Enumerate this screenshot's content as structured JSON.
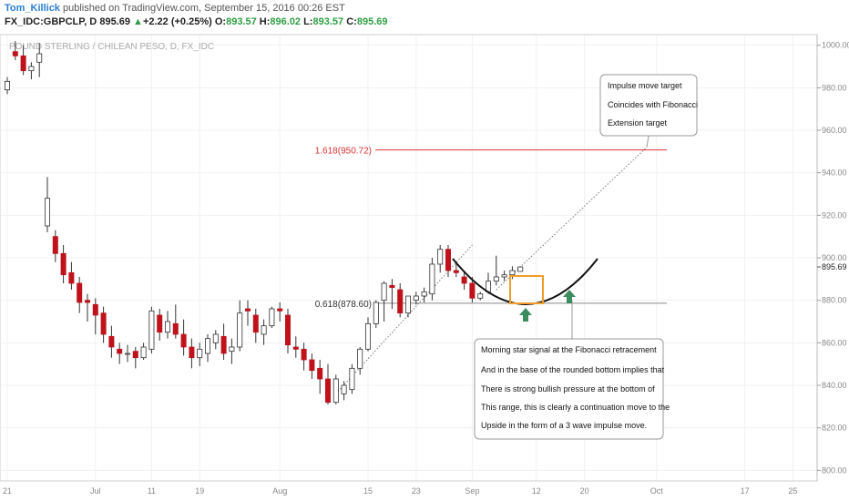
{
  "header": {
    "author": "Tom_Killick",
    "published": " published on TradingView.com, September 15, 2016 00:26 EST",
    "symbol": "FX_IDC:GBPCLP, D",
    "last": "895.69",
    "arrow": "▲",
    "change": "+2.22 (+0.25%)",
    "o_label": "O:",
    "o": "893.57",
    "h_label": "H:",
    "h": "896.02",
    "l_label": "L:",
    "l": "893.57",
    "c_label": "C:",
    "c": "895.69"
  },
  "chart_data": {
    "type": "candlestick",
    "title": "POUND STERLING / CHILEAN PESO, D, FX_IDC",
    "ylim": [
      795,
      1005
    ],
    "y_ticks": [
      800,
      820,
      840,
      860,
      880,
      900,
      920,
      940,
      960,
      980,
      1000
    ],
    "y_tick_labels": [
      "800.00",
      "820.00",
      "840.00",
      "860.00",
      "880.00",
      "900.00",
      "920.00",
      "940.00",
      "960.00",
      "980.00",
      "1000.00"
    ],
    "x_ticks": [
      {
        "label": "21",
        "bar": 0
      },
      {
        "label": "Jul",
        "bar": 11
      },
      {
        "label": "11",
        "bar": 18
      },
      {
        "label": "19",
        "bar": 24
      },
      {
        "label": "Aug",
        "bar": 34
      },
      {
        "label": "15",
        "bar": 45
      },
      {
        "label": "23",
        "bar": 51
      },
      {
        "label": "Sep",
        "bar": 58
      },
      {
        "label": "12",
        "bar": 66
      },
      {
        "label": "20",
        "bar": 72
      },
      {
        "label": "Oct",
        "bar": 81
      },
      {
        "label": "17",
        "bar": 92
      },
      {
        "label": "25",
        "bar": 98
      }
    ],
    "grid": true,
    "candles": [
      [
        979,
        985,
        977,
        983
      ],
      [
        997,
        1002,
        993,
        995
      ],
      [
        995,
        1000,
        986,
        988
      ],
      [
        988,
        992,
        984,
        990
      ],
      [
        992,
        1001,
        985,
        996
      ],
      [
        915,
        938,
        912,
        928
      ],
      [
        910,
        913,
        898,
        902
      ],
      [
        902,
        906,
        888,
        892
      ],
      [
        893,
        898,
        885,
        888
      ],
      [
        888,
        891,
        874,
        879
      ],
      [
        880,
        883,
        870,
        879
      ],
      [
        878,
        881,
        864,
        873
      ],
      [
        874,
        877,
        860,
        864
      ],
      [
        863,
        868,
        853,
        858
      ],
      [
        857,
        860,
        850,
        855
      ],
      [
        855,
        859,
        851,
        855
      ],
      [
        856,
        858,
        848,
        853
      ],
      [
        853,
        860,
        852,
        858
      ],
      [
        857,
        877,
        855,
        875
      ],
      [
        873,
        876,
        861,
        865
      ],
      [
        865,
        875,
        862,
        870
      ],
      [
        869,
        878,
        862,
        864
      ],
      [
        864,
        871,
        854,
        858
      ],
      [
        858,
        862,
        848,
        853
      ],
      [
        853,
        860,
        849,
        857
      ],
      [
        855,
        864,
        851,
        862
      ],
      [
        860,
        866,
        857,
        864
      ],
      [
        863,
        869,
        852,
        855
      ],
      [
        856,
        862,
        850,
        858
      ],
      [
        858,
        880,
        856,
        874
      ],
      [
        876,
        880,
        868,
        875
      ],
      [
        873,
        876,
        860,
        865
      ],
      [
        864,
        871,
        859,
        868
      ],
      [
        868,
        877,
        867,
        876
      ],
      [
        876,
        879,
        870,
        875
      ],
      [
        873,
        876,
        855,
        859
      ],
      [
        858,
        863,
        853,
        857
      ],
      [
        857,
        860,
        847,
        852
      ],
      [
        852,
        855,
        843,
        847
      ],
      [
        848,
        852,
        836,
        843
      ],
      [
        843,
        850,
        831,
        832
      ],
      [
        832,
        845,
        831,
        843
      ],
      [
        836,
        842,
        833,
        840
      ],
      [
        838,
        850,
        836,
        848
      ],
      [
        848,
        858,
        845,
        857
      ],
      [
        857,
        872,
        856,
        869
      ],
      [
        869,
        880,
        867,
        879
      ],
      [
        880,
        889,
        870,
        888
      ],
      [
        887,
        890,
        876,
        886
      ],
      [
        885,
        888,
        872,
        874
      ],
      [
        874,
        882,
        872,
        882
      ],
      [
        880,
        884,
        878,
        882
      ],
      [
        882,
        886,
        879,
        884
      ],
      [
        883,
        900,
        880,
        897
      ],
      [
        897,
        906,
        893,
        904
      ],
      [
        904,
        906,
        891,
        894
      ],
      [
        894,
        897,
        891,
        893
      ],
      [
        891,
        894,
        885,
        888
      ],
      [
        888,
        891,
        879,
        881
      ],
      [
        881,
        884,
        880,
        883
      ],
      [
        884,
        893,
        883,
        889
      ],
      [
        889,
        901,
        887,
        891
      ],
      [
        891,
        894,
        889,
        892
      ],
      [
        892,
        896,
        890,
        894
      ],
      [
        893.57,
        896.02,
        893.57,
        895.69
      ]
    ],
    "fibonacci": [
      {
        "label": "1.618(950.72)",
        "value": 950.72,
        "color": "#e03131"
      },
      {
        "label": "0.618(878.60)",
        "value": 878.6,
        "color": "#888888"
      }
    ],
    "last_price": "895.69",
    "annotations": [
      {
        "lines": [
          "Impulse move target",
          "Coincides with Fibonacci",
          "Extension target"
        ]
      },
      {
        "lines": [
          "Morning star signal at the Fibonacci retracement",
          "And in the base of the rounded bottom implies that",
          "There is strong bullish pressure at the bottom of",
          "This range, this is clearly a continuation move to the",
          "Upside in the form of a 3 wave impulse move."
        ]
      }
    ],
    "colors": {
      "up": "#ffffff",
      "down": "#c0121b",
      "wick": "#333333",
      "box": "#f29c2b",
      "arrow": "#3d8c5f",
      "curve": "#111111"
    }
  }
}
